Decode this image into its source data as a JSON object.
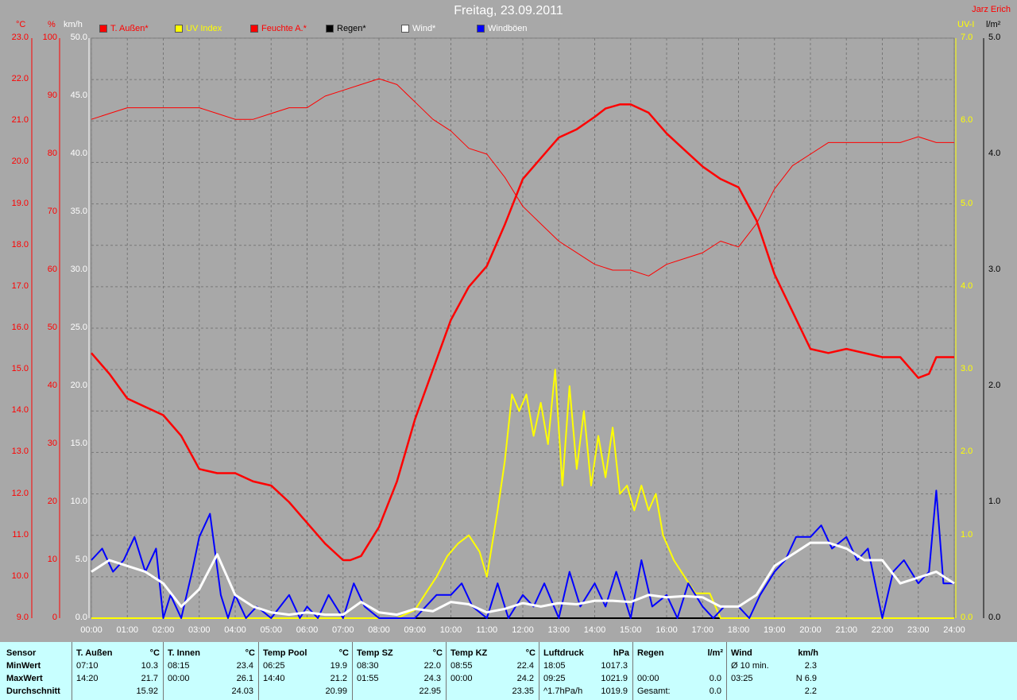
{
  "title": "Freitag, 23.09.2011",
  "author": "Jarz Erich",
  "units": {
    "temp": "°C",
    "hum": "%",
    "wind": "km/h",
    "uv": "UV-I",
    "rain": "l/m²"
  },
  "legend": [
    {
      "label": "T. Außen*",
      "color": "#ff0000",
      "text_color": "#ff0000"
    },
    {
      "label": "UV Index",
      "color": "#ffff00",
      "text_color": "#ffff00"
    },
    {
      "label": "Feuchte A.*",
      "color": "#ff0000",
      "text_color": "#ff0000"
    },
    {
      "label": "Regen*",
      "color": "#000000",
      "text_color": "#000000"
    },
    {
      "label": "Wind*",
      "color": "#ffffff",
      "text_color": "#ffffff"
    },
    {
      "label": "Windböen",
      "color": "#0000ff",
      "text_color": "#ffffff"
    }
  ],
  "axes": {
    "temp_ticks": [
      "23.0",
      "22.0",
      "21.0",
      "20.0",
      "19.0",
      "18.0",
      "17.0",
      "16.0",
      "15.0",
      "14.0",
      "13.0",
      "12.0",
      "11.0",
      "10.0",
      "9.0"
    ],
    "hum_ticks": [
      "100",
      "90",
      "80",
      "70",
      "60",
      "50",
      "40",
      "30",
      "20",
      "10",
      "0"
    ],
    "wind_ticks": [
      "50.0",
      "45.0",
      "40.0",
      "35.0",
      "30.0",
      "25.0",
      "20.0",
      "15.0",
      "10.0",
      "5.0",
      "0.0"
    ],
    "uv_ticks": [
      "7.0",
      "6.0",
      "5.0",
      "4.0",
      "3.0",
      "2.0",
      "1.0",
      "0.0"
    ],
    "rain_ticks": [
      "5.0",
      "4.0",
      "3.0",
      "2.0",
      "1.0",
      "0.0"
    ],
    "x_ticks": [
      "00:00",
      "01:00",
      "02:00",
      "03:00",
      "04:00",
      "05:00",
      "06:00",
      "07:00",
      "08:00",
      "09:00",
      "10:00",
      "11:00",
      "12:00",
      "13:00",
      "14:00",
      "15:00",
      "16:00",
      "17:00",
      "18:00",
      "19:00",
      "20:00",
      "21:00",
      "22:00",
      "23:00",
      "24:00"
    ]
  },
  "chart_data": {
    "type": "line",
    "title": "Freitag, 23.09.2011",
    "x_unit": "hour of day",
    "x_range": [
      0,
      24
    ],
    "y_axes": {
      "temp_C": [
        9,
        23
      ],
      "humidity_pct": [
        0,
        100
      ],
      "wind_kmh": [
        0,
        50
      ],
      "uv_index": [
        0,
        7
      ],
      "rain_lm2": [
        0,
        5
      ]
    },
    "grid": true,
    "legend_position": "top",
    "series": [
      {
        "name": "T. Außen*",
        "axis": "temp_C",
        "color": "#ff0000",
        "x": [
          0,
          0.5,
          1,
          1.5,
          2,
          2.5,
          3,
          3.5,
          4,
          4.5,
          5,
          5.5,
          6,
          6.5,
          7,
          7.2,
          7.5,
          8,
          8.5,
          9,
          9.5,
          10,
          10.5,
          11,
          11.5,
          12,
          12.5,
          13,
          13.5,
          14,
          14.3,
          14.7,
          15,
          15.5,
          16,
          16.5,
          17,
          17.5,
          18,
          18.5,
          19,
          19.5,
          20,
          20.5,
          21,
          21.5,
          22,
          22.5,
          23,
          23.3,
          23.5,
          24
        ],
        "y": [
          15.4,
          14.9,
          14.3,
          14.1,
          13.9,
          13.4,
          12.6,
          12.5,
          12.5,
          12.3,
          12.2,
          11.8,
          11.3,
          10.8,
          10.4,
          10.4,
          10.5,
          11.2,
          12.3,
          13.8,
          15.0,
          16.2,
          17.0,
          17.5,
          18.5,
          19.6,
          20.1,
          20.6,
          20.8,
          21.1,
          21.3,
          21.4,
          21.4,
          21.2,
          20.7,
          20.3,
          19.9,
          19.6,
          19.4,
          18.6,
          17.3,
          16.4,
          15.5,
          15.4,
          15.5,
          15.4,
          15.3,
          15.3,
          14.8,
          14.9,
          15.3,
          15.3
        ]
      },
      {
        "name": "Feuchte A.*",
        "axis": "humidity_pct",
        "color": "#ff0000",
        "x": [
          0,
          0.5,
          1,
          1.5,
          2,
          2.5,
          3,
          3.5,
          4,
          4.5,
          5,
          5.5,
          6,
          6.5,
          7,
          7.5,
          8,
          8.5,
          9,
          9.5,
          10,
          10.5,
          11,
          11.5,
          12,
          12.5,
          13,
          13.5,
          14,
          14.5,
          15,
          15.5,
          16,
          16.5,
          17,
          17.5,
          18,
          18.5,
          19,
          19.5,
          20,
          20.5,
          21,
          21.5,
          22,
          22.5,
          23,
          23.5,
          24
        ],
        "y": [
          86,
          87,
          88,
          88,
          88,
          88,
          88,
          87,
          86,
          86,
          87,
          88,
          88,
          90,
          91,
          92,
          93,
          92,
          89,
          86,
          84,
          81,
          80,
          76,
          71,
          68,
          65,
          63,
          61,
          60,
          60,
          59,
          61,
          62,
          63,
          65,
          64,
          68,
          74,
          78,
          80,
          82,
          82,
          82,
          82,
          82,
          83,
          82,
          82
        ]
      },
      {
        "name": "UV Index",
        "axis": "uv_index",
        "color": "#ffff00",
        "x": [
          0,
          8.5,
          9,
          9.3,
          9.6,
          9.9,
          10.2,
          10.5,
          10.8,
          11.0,
          11.3,
          11.5,
          11.7,
          11.9,
          12.1,
          12.3,
          12.5,
          12.7,
          12.9,
          13.1,
          13.3,
          13.5,
          13.7,
          13.9,
          14.1,
          14.3,
          14.5,
          14.7,
          14.9,
          15.1,
          15.3,
          15.5,
          15.7,
          15.9,
          16.2,
          16.5,
          16.8,
          17.2,
          17.5,
          18,
          24
        ],
        "y": [
          0,
          0,
          0.1,
          0.3,
          0.5,
          0.75,
          0.9,
          1.0,
          0.8,
          0.5,
          1.3,
          1.9,
          2.7,
          2.5,
          2.7,
          2.2,
          2.6,
          2.1,
          3.0,
          1.6,
          2.8,
          1.8,
          2.5,
          1.6,
          2.2,
          1.7,
          2.3,
          1.5,
          1.6,
          1.3,
          1.6,
          1.3,
          1.5,
          1.0,
          0.7,
          0.5,
          0.3,
          0.3,
          0.0,
          0,
          0
        ]
      },
      {
        "name": "Wind*",
        "axis": "wind_kmh",
        "color": "#ffffff",
        "x": [
          0,
          0.5,
          1,
          1.5,
          2,
          2.5,
          3,
          3.5,
          4,
          4.5,
          5,
          5.5,
          6,
          6.5,
          7,
          7.5,
          8,
          8.5,
          9,
          9.5,
          10,
          10.5,
          11,
          11.5,
          12,
          12.5,
          13,
          13.5,
          14,
          14.5,
          15,
          15.5,
          16,
          16.5,
          17,
          17.5,
          18,
          18.5,
          19,
          19.5,
          20,
          20.5,
          21,
          21.5,
          22,
          22.5,
          23,
          23.5,
          24
        ],
        "y": [
          4,
          5,
          4.5,
          4,
          3,
          1,
          2.5,
          5.5,
          2,
          1,
          0.5,
          0.3,
          0.5,
          0.3,
          0.3,
          1.4,
          0.5,
          0.3,
          0.8,
          0.6,
          1.4,
          1.2,
          0.5,
          0.8,
          1.3,
          1.0,
          1.3,
          1.2,
          1.5,
          1.5,
          1.4,
          2.0,
          1.8,
          1.9,
          1.8,
          1.0,
          1.0,
          2.0,
          4.5,
          5.5,
          6.5,
          6.5,
          6.0,
          5.0,
          5.0,
          3.0,
          3.5,
          4.0,
          3.0
        ]
      },
      {
        "name": "Windböen",
        "axis": "wind_kmh",
        "color": "#0000ff",
        "x": [
          0,
          0.3,
          0.6,
          0.9,
          1.2,
          1.5,
          1.8,
          2.0,
          2.2,
          2.5,
          2.8,
          3.0,
          3.3,
          3.6,
          3.8,
          4.0,
          4.3,
          4.6,
          5.0,
          5.5,
          5.8,
          6.0,
          6.3,
          6.6,
          7.0,
          7.3,
          7.6,
          8.0,
          8.5,
          9.0,
          9.3,
          9.6,
          10.0,
          10.3,
          10.6,
          11.0,
          11.3,
          11.6,
          12.0,
          12.3,
          12.6,
          13.0,
          13.3,
          13.6,
          14.0,
          14.3,
          14.6,
          15.0,
          15.3,
          15.6,
          16.0,
          16.3,
          16.6,
          17.0,
          17.3,
          17.6,
          18.0,
          18.3,
          18.6,
          19.0,
          19.3,
          19.6,
          20.0,
          20.3,
          20.6,
          21.0,
          21.3,
          21.6,
          22.0,
          22.3,
          22.6,
          23.0,
          23.3,
          23.5,
          23.7,
          24
        ],
        "y": [
          5,
          6,
          4,
          5,
          7,
          4,
          6,
          0,
          2,
          0,
          4,
          7,
          9,
          2,
          0,
          2,
          0,
          1,
          0,
          2,
          0,
          1,
          0,
          2,
          0,
          3,
          1,
          0,
          0,
          0,
          1,
          2,
          2,
          3,
          1,
          0,
          3,
          0,
          2,
          1,
          3,
          0,
          4,
          1,
          3,
          1,
          4,
          0,
          5,
          1,
          2,
          0,
          3,
          1,
          0,
          1,
          1,
          0,
          2,
          4,
          5,
          7,
          7,
          8,
          6,
          7,
          5,
          6,
          0,
          4,
          5,
          3,
          4,
          11,
          3,
          3
        ]
      },
      {
        "name": "Regen*",
        "axis": "rain_lm2",
        "color": "#000000",
        "x": [
          0,
          24
        ],
        "y": [
          0,
          0
        ]
      }
    ]
  },
  "table": {
    "row_labels": {
      "header": "Sensor",
      "min": "MinWert",
      "max": "MaxWert",
      "avg": "Durchschnitt"
    },
    "sections": [
      {
        "name": "T. Außen",
        "unit": "°C",
        "min_time": "07:10",
        "min_val": "10.3",
        "max_time": "14:20",
        "max_val": "21.7",
        "avg_time": "",
        "avg_val": "15.92"
      },
      {
        "name": "T. Innen",
        "unit": "°C",
        "min_time": "08:15",
        "min_val": "23.4",
        "max_time": "00:00",
        "max_val": "26.1",
        "avg_time": "",
        "avg_val": "24.03"
      },
      {
        "name": "Temp Pool",
        "unit": "°C",
        "min_time": "06:25",
        "min_val": "19.9",
        "max_time": "14:40",
        "max_val": "21.2",
        "avg_time": "",
        "avg_val": "20.99"
      },
      {
        "name": "Temp SZ",
        "unit": "°C",
        "min_time": "08:30",
        "min_val": "22.0",
        "max_time": "01:55",
        "max_val": "24.3",
        "avg_time": "",
        "avg_val": "22.95"
      },
      {
        "name": "Temp KZ",
        "unit": "°C",
        "min_time": "08:55",
        "min_val": "22.4",
        "max_time": "00:00",
        "max_val": "24.2",
        "avg_time": "",
        "avg_val": "23.35"
      },
      {
        "name": "Luftdruck",
        "unit": "hPa",
        "min_time": "18:05",
        "min_val": "1017.3",
        "max_time": "09:25",
        "max_val": "1021.9",
        "avg_time": "^1.7hPa/h",
        "avg_val": "1019.9"
      },
      {
        "name": "Regen",
        "unit": "l/m²",
        "min_time": "",
        "min_val": "",
        "max_time": "00:00",
        "max_val": "0.0",
        "avg_time": "Gesamt:",
        "avg_val": "0.0"
      },
      {
        "name": "Wind",
        "unit": "km/h",
        "min_time": "Ø 10 min.",
        "min_val": "2.3",
        "max_time": "03:25",
        "max_val": "N 6.9",
        "avg_time": "",
        "avg_val": "2.2"
      }
    ]
  }
}
